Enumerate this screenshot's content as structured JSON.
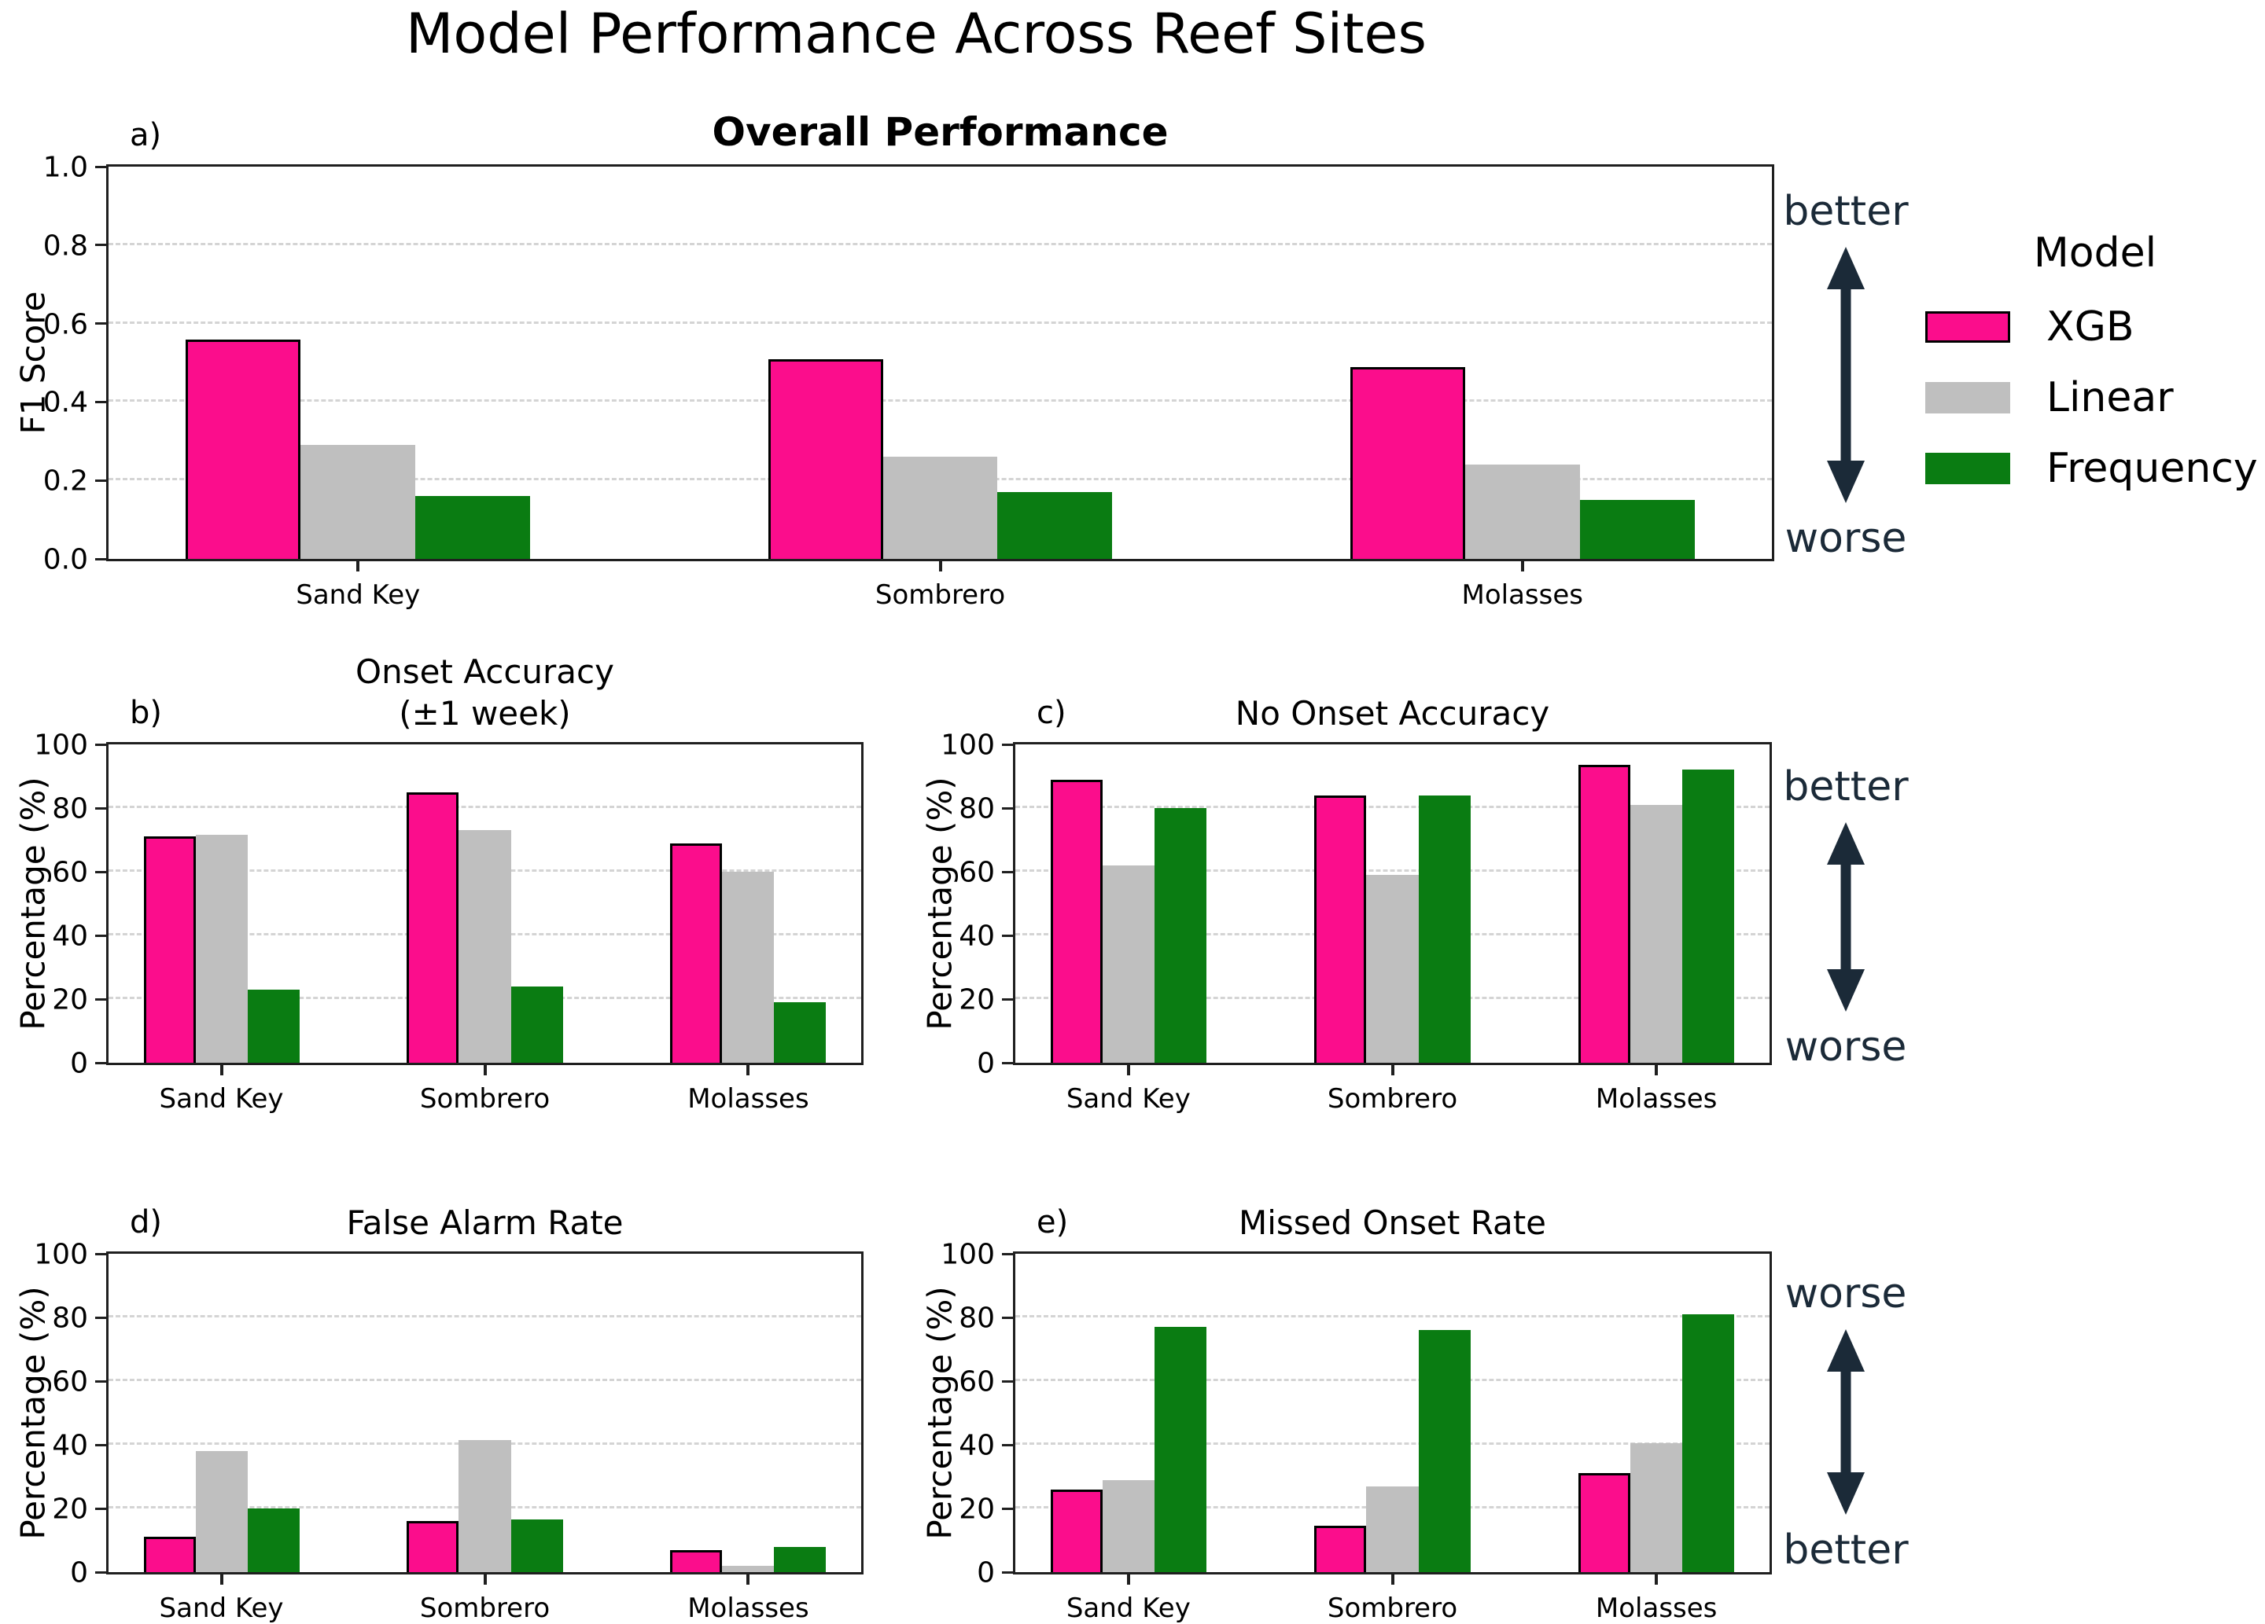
{
  "suptitle": "Model Performance Across Reef Sites",
  "colors": {
    "xgb": "#FB0D8C",
    "linear": "#BFBFBF",
    "frequency": "#0A7C12",
    "arrow": "#1B2A38",
    "spine": "#1F1F1F",
    "grid": "#D4D4D4"
  },
  "legend": {
    "title": "Model",
    "entries": [
      {
        "label": "XGB",
        "color": "#FB0D8C",
        "edged": true
      },
      {
        "label": "Linear",
        "color": "#BFBFBF",
        "edged": false
      },
      {
        "label": "Frequency",
        "color": "#0A7C12",
        "edged": false
      }
    ]
  },
  "annotations": [
    {
      "top": "better",
      "bottom": "worse"
    },
    {
      "top": "better",
      "bottom": "worse"
    },
    {
      "top": "worse",
      "bottom": "better"
    }
  ],
  "chart_data": [
    {
      "id": "a",
      "letter": "a)",
      "type": "bar",
      "title": "Overall Performance",
      "ylabel": "F1 Score",
      "ylim": [
        0,
        1.0
      ],
      "yticks": [
        0.0,
        0.2,
        0.4,
        0.6,
        0.8,
        1.0
      ],
      "ytick_decimals": 1,
      "categories": [
        "Sand Key",
        "Sombrero",
        "Molasses"
      ],
      "series": [
        {
          "name": "XGB",
          "values": [
            0.56,
            0.51,
            0.49
          ]
        },
        {
          "name": "Linear",
          "values": [
            0.29,
            0.26,
            0.24
          ]
        },
        {
          "name": "Frequency",
          "values": [
            0.16,
            0.17,
            0.15
          ]
        }
      ],
      "grid": "dashed horizontal",
      "legend_position": "outside right"
    },
    {
      "id": "b",
      "letter": "b)",
      "type": "bar",
      "title": "Onset Accuracy\n(±1 week)",
      "ylabel": "Percentage (%)",
      "ylim": [
        0,
        100
      ],
      "yticks": [
        0,
        20,
        40,
        60,
        80,
        100
      ],
      "ytick_decimals": 0,
      "categories": [
        "Sand Key",
        "Sombrero",
        "Molasses"
      ],
      "series": [
        {
          "name": "XGB",
          "values": [
            71,
            85,
            69
          ]
        },
        {
          "name": "Linear",
          "values": [
            71.5,
            73,
            60
          ]
        },
        {
          "name": "Frequency",
          "values": [
            23,
            24,
            19
          ]
        }
      ],
      "grid": "dashed horizontal"
    },
    {
      "id": "c",
      "letter": "c)",
      "type": "bar",
      "title": "No Onset Accuracy",
      "ylabel": "Percentage (%)",
      "ylim": [
        0,
        100
      ],
      "yticks": [
        0,
        20,
        40,
        60,
        80,
        100
      ],
      "ytick_decimals": 0,
      "categories": [
        "Sand Key",
        "Sombrero",
        "Molasses"
      ],
      "series": [
        {
          "name": "XGB",
          "values": [
            89,
            84,
            93.5
          ]
        },
        {
          "name": "Linear",
          "values": [
            62,
            59,
            81
          ]
        },
        {
          "name": "Frequency",
          "values": [
            80,
            84,
            92
          ]
        }
      ],
      "grid": "dashed horizontal"
    },
    {
      "id": "d",
      "letter": "d)",
      "type": "bar",
      "title": "False Alarm Rate",
      "ylabel": "Percentage (%)",
      "ylim": [
        0,
        100
      ],
      "yticks": [
        0,
        20,
        40,
        60,
        80,
        100
      ],
      "ytick_decimals": 0,
      "categories": [
        "Sand Key",
        "Sombrero",
        "Molasses"
      ],
      "series": [
        {
          "name": "XGB",
          "values": [
            11,
            16,
            7
          ]
        },
        {
          "name": "Linear",
          "values": [
            38,
            41.5,
            2
          ]
        },
        {
          "name": "Frequency",
          "values": [
            20,
            16.5,
            8
          ]
        }
      ],
      "grid": "dashed horizontal"
    },
    {
      "id": "e",
      "letter": "e)",
      "type": "bar",
      "title": "Missed Onset Rate",
      "ylabel": "Percentage (%)",
      "ylim": [
        0,
        100
      ],
      "yticks": [
        0,
        20,
        40,
        60,
        80,
        100
      ],
      "ytick_decimals": 0,
      "categories": [
        "Sand Key",
        "Sombrero",
        "Molasses"
      ],
      "series": [
        {
          "name": "XGB",
          "values": [
            26,
            14.5,
            31
          ]
        },
        {
          "name": "Linear",
          "values": [
            29,
            27,
            40.5
          ]
        },
        {
          "name": "Frequency",
          "values": [
            77,
            76,
            81
          ]
        }
      ],
      "grid": "dashed horizontal"
    }
  ]
}
